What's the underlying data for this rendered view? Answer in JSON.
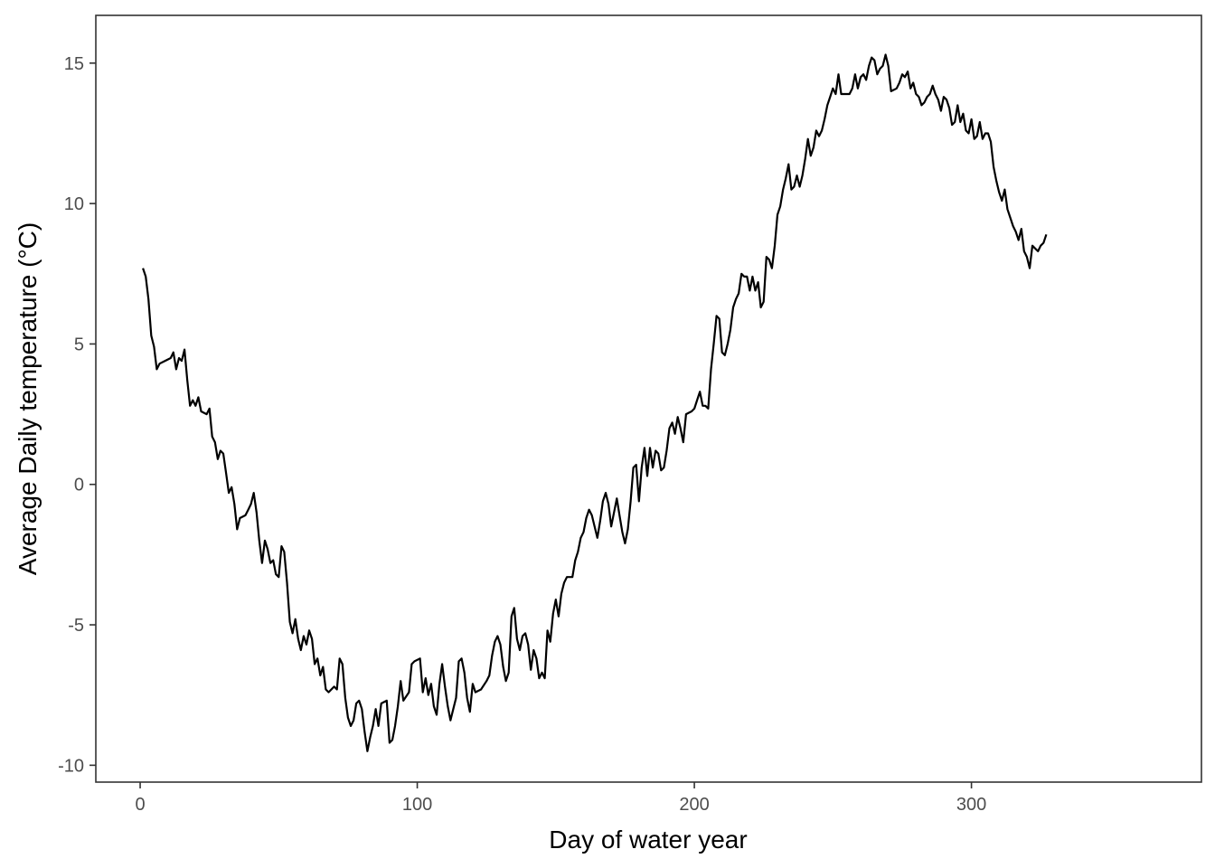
{
  "chart_data": {
    "type": "line",
    "title": "",
    "xlabel": "Day of water year",
    "ylabel": "Average Daily temperature (°C)",
    "xlim": [
      -16,
      383
    ],
    "ylim": [
      -10.6,
      16.7
    ],
    "x_ticks": [
      0,
      100,
      200,
      300
    ],
    "y_ticks": [
      -10,
      -5,
      0,
      5,
      10,
      15
    ],
    "grid": false,
    "line_color": "#000000",
    "series": [
      {
        "values": [
          [
            1,
            7.7
          ],
          [
            2,
            7.4
          ],
          [
            3,
            6.6
          ],
          [
            4,
            5.3
          ],
          [
            5,
            4.9
          ],
          [
            6,
            4.1
          ],
          [
            7,
            4.3
          ],
          [
            9,
            4.4
          ],
          [
            11,
            4.5
          ],
          [
            12,
            4.7
          ],
          [
            13,
            4.1
          ],
          [
            14,
            4.5
          ],
          [
            15,
            4.4
          ],
          [
            16,
            4.8
          ],
          [
            17,
            3.7
          ],
          [
            18,
            2.8
          ],
          [
            19,
            3.0
          ],
          [
            20,
            2.8
          ],
          [
            21,
            3.1
          ],
          [
            22,
            2.6
          ],
          [
            24,
            2.5
          ],
          [
            25,
            2.7
          ],
          [
            26,
            1.7
          ],
          [
            27,
            1.5
          ],
          [
            28,
            0.9
          ],
          [
            29,
            1.2
          ],
          [
            30,
            1.1
          ],
          [
            31,
            0.4
          ],
          [
            32,
            -0.3
          ],
          [
            33,
            -0.1
          ],
          [
            34,
            -0.7
          ],
          [
            35,
            -1.6
          ],
          [
            36,
            -1.2
          ],
          [
            38,
            -1.1
          ],
          [
            39,
            -0.9
          ],
          [
            40,
            -0.7
          ],
          [
            41,
            -0.3
          ],
          [
            42,
            -1.0
          ],
          [
            43,
            -2.0
          ],
          [
            44,
            -2.8
          ],
          [
            45,
            -2.0
          ],
          [
            46,
            -2.3
          ],
          [
            47,
            -2.8
          ],
          [
            48,
            -2.7
          ],
          [
            49,
            -3.2
          ],
          [
            50,
            -3.3
          ],
          [
            51,
            -2.2
          ],
          [
            52,
            -2.4
          ],
          [
            53,
            -3.5
          ],
          [
            54,
            -4.9
          ],
          [
            55,
            -5.3
          ],
          [
            56,
            -4.8
          ],
          [
            57,
            -5.5
          ],
          [
            58,
            -5.9
          ],
          [
            59,
            -5.4
          ],
          [
            60,
            -5.7
          ],
          [
            61,
            -5.2
          ],
          [
            62,
            -5.5
          ],
          [
            63,
            -6.4
          ],
          [
            64,
            -6.2
          ],
          [
            65,
            -6.8
          ],
          [
            66,
            -6.5
          ],
          [
            67,
            -7.3
          ],
          [
            68,
            -7.4
          ],
          [
            70,
            -7.2
          ],
          [
            71,
            -7.3
          ],
          [
            72,
            -6.2
          ],
          [
            73,
            -6.4
          ],
          [
            74,
            -7.6
          ],
          [
            75,
            -8.3
          ],
          [
            76,
            -8.6
          ],
          [
            77,
            -8.4
          ],
          [
            78,
            -7.8
          ],
          [
            79,
            -7.7
          ],
          [
            80,
            -8.0
          ],
          [
            81,
            -8.8
          ],
          [
            82,
            -9.5
          ],
          [
            83,
            -9.0
          ],
          [
            84,
            -8.6
          ],
          [
            85,
            -8.0
          ],
          [
            86,
            -8.6
          ],
          [
            87,
            -7.8
          ],
          [
            89,
            -7.7
          ],
          [
            90,
            -9.2
          ],
          [
            91,
            -9.1
          ],
          [
            92,
            -8.6
          ],
          [
            93,
            -7.9
          ],
          [
            94,
            -7.0
          ],
          [
            95,
            -7.7
          ],
          [
            97,
            -7.4
          ],
          [
            98,
            -6.4
          ],
          [
            99,
            -6.3
          ],
          [
            101,
            -6.2
          ],
          [
            102,
            -7.4
          ],
          [
            103,
            -6.9
          ],
          [
            104,
            -7.5
          ],
          [
            105,
            -7.1
          ],
          [
            106,
            -7.9
          ],
          [
            107,
            -8.2
          ],
          [
            108,
            -7.1
          ],
          [
            109,
            -6.4
          ],
          [
            110,
            -7.2
          ],
          [
            111,
            -7.9
          ],
          [
            112,
            -8.4
          ],
          [
            113,
            -8.0
          ],
          [
            114,
            -7.6
          ],
          [
            115,
            -6.3
          ],
          [
            116,
            -6.2
          ],
          [
            117,
            -6.7
          ],
          [
            118,
            -7.6
          ],
          [
            119,
            -8.1
          ],
          [
            120,
            -7.1
          ],
          [
            121,
            -7.4
          ],
          [
            123,
            -7.3
          ],
          [
            125,
            -7.0
          ],
          [
            126,
            -6.8
          ],
          [
            127,
            -6.1
          ],
          [
            128,
            -5.6
          ],
          [
            129,
            -5.4
          ],
          [
            130,
            -5.7
          ],
          [
            131,
            -6.5
          ],
          [
            132,
            -7.0
          ],
          [
            133,
            -6.7
          ],
          [
            134,
            -4.7
          ],
          [
            135,
            -4.4
          ],
          [
            136,
            -5.5
          ],
          [
            137,
            -5.9
          ],
          [
            138,
            -5.4
          ],
          [
            139,
            -5.3
          ],
          [
            140,
            -5.7
          ],
          [
            141,
            -6.6
          ],
          [
            142,
            -5.9
          ],
          [
            143,
            -6.2
          ],
          [
            144,
            -6.9
          ],
          [
            145,
            -6.7
          ],
          [
            146,
            -6.9
          ],
          [
            147,
            -5.2
          ],
          [
            148,
            -5.6
          ],
          [
            149,
            -4.6
          ],
          [
            150,
            -4.1
          ],
          [
            151,
            -4.7
          ],
          [
            152,
            -3.9
          ],
          [
            153,
            -3.5
          ],
          [
            154,
            -3.3
          ],
          [
            156,
            -3.3
          ],
          [
            157,
            -2.7
          ],
          [
            158,
            -2.4
          ],
          [
            159,
            -1.9
          ],
          [
            160,
            -1.7
          ],
          [
            161,
            -1.2
          ],
          [
            162,
            -0.9
          ],
          [
            163,
            -1.1
          ],
          [
            164,
            -1.5
          ],
          [
            165,
            -1.9
          ],
          [
            166,
            -1.3
          ],
          [
            167,
            -0.6
          ],
          [
            168,
            -0.3
          ],
          [
            169,
            -0.7
          ],
          [
            170,
            -1.5
          ],
          [
            171,
            -1.0
          ],
          [
            172,
            -0.5
          ],
          [
            173,
            -1.1
          ],
          [
            174,
            -1.7
          ],
          [
            175,
            -2.1
          ],
          [
            176,
            -1.6
          ],
          [
            177,
            -0.6
          ],
          [
            178,
            0.6
          ],
          [
            179,
            0.7
          ],
          [
            180,
            -0.6
          ],
          [
            181,
            0.6
          ],
          [
            182,
            1.3
          ],
          [
            183,
            0.3
          ],
          [
            184,
            1.3
          ],
          [
            185,
            0.6
          ],
          [
            186,
            1.2
          ],
          [
            187,
            1.1
          ],
          [
            188,
            0.5
          ],
          [
            189,
            0.6
          ],
          [
            190,
            1.2
          ],
          [
            191,
            2.0
          ],
          [
            192,
            2.2
          ],
          [
            193,
            1.8
          ],
          [
            194,
            2.4
          ],
          [
            195,
            2.0
          ],
          [
            196,
            1.5
          ],
          [
            197,
            2.5
          ],
          [
            199,
            2.6
          ],
          [
            200,
            2.7
          ],
          [
            201,
            3.0
          ],
          [
            202,
            3.3
          ],
          [
            203,
            2.8
          ],
          [
            204,
            2.8
          ],
          [
            205,
            2.7
          ],
          [
            206,
            4.1
          ],
          [
            207,
            5.0
          ],
          [
            208,
            6.0
          ],
          [
            209,
            5.9
          ],
          [
            210,
            4.7
          ],
          [
            211,
            4.6
          ],
          [
            212,
            5.0
          ],
          [
            213,
            5.5
          ],
          [
            214,
            6.3
          ],
          [
            215,
            6.6
          ],
          [
            216,
            6.8
          ],
          [
            217,
            7.5
          ],
          [
            218,
            7.4
          ],
          [
            219,
            7.4
          ],
          [
            220,
            6.9
          ],
          [
            221,
            7.4
          ],
          [
            222,
            6.9
          ],
          [
            223,
            7.2
          ],
          [
            224,
            6.3
          ],
          [
            225,
            6.5
          ],
          [
            226,
            8.1
          ],
          [
            227,
            8.0
          ],
          [
            228,
            7.7
          ],
          [
            229,
            8.5
          ],
          [
            230,
            9.6
          ],
          [
            231,
            9.9
          ],
          [
            232,
            10.5
          ],
          [
            233,
            10.9
          ],
          [
            234,
            11.4
          ],
          [
            235,
            10.5
          ],
          [
            236,
            10.6
          ],
          [
            237,
            11.0
          ],
          [
            238,
            10.6
          ],
          [
            239,
            11.0
          ],
          [
            240,
            11.6
          ],
          [
            241,
            12.3
          ],
          [
            242,
            11.7
          ],
          [
            243,
            12.0
          ],
          [
            244,
            12.6
          ],
          [
            245,
            12.4
          ],
          [
            246,
            12.6
          ],
          [
            247,
            13.0
          ],
          [
            248,
            13.5
          ],
          [
            249,
            13.8
          ],
          [
            250,
            14.1
          ],
          [
            251,
            13.9
          ],
          [
            252,
            14.6
          ],
          [
            253,
            13.9
          ],
          [
            256,
            13.9
          ],
          [
            257,
            14.1
          ],
          [
            258,
            14.6
          ],
          [
            259,
            14.1
          ],
          [
            260,
            14.5
          ],
          [
            261,
            14.6
          ],
          [
            262,
            14.4
          ],
          [
            263,
            14.9
          ],
          [
            264,
            15.2
          ],
          [
            265,
            15.1
          ],
          [
            266,
            14.6
          ],
          [
            267,
            14.8
          ],
          [
            268,
            14.9
          ],
          [
            269,
            15.3
          ],
          [
            270,
            14.9
          ],
          [
            271,
            14.0
          ],
          [
            273,
            14.1
          ],
          [
            274,
            14.3
          ],
          [
            275,
            14.6
          ],
          [
            276,
            14.5
          ],
          [
            277,
            14.7
          ],
          [
            278,
            14.1
          ],
          [
            279,
            14.3
          ],
          [
            280,
            13.9
          ],
          [
            281,
            13.8
          ],
          [
            282,
            13.5
          ],
          [
            283,
            13.6
          ],
          [
            284,
            13.8
          ],
          [
            285,
            13.9
          ],
          [
            286,
            14.2
          ],
          [
            287,
            13.9
          ],
          [
            288,
            13.7
          ],
          [
            289,
            13.3
          ],
          [
            290,
            13.8
          ],
          [
            291,
            13.7
          ],
          [
            292,
            13.4
          ],
          [
            293,
            12.8
          ],
          [
            294,
            12.9
          ],
          [
            295,
            13.5
          ],
          [
            296,
            12.9
          ],
          [
            297,
            13.2
          ],
          [
            298,
            12.6
          ],
          [
            299,
            12.5
          ],
          [
            300,
            13.0
          ],
          [
            301,
            12.3
          ],
          [
            302,
            12.4
          ],
          [
            303,
            12.9
          ],
          [
            304,
            12.3
          ],
          [
            305,
            12.5
          ],
          [
            306,
            12.5
          ],
          [
            307,
            12.2
          ],
          [
            308,
            11.3
          ],
          [
            309,
            10.8
          ],
          [
            310,
            10.4
          ],
          [
            311,
            10.1
          ],
          [
            312,
            10.5
          ],
          [
            313,
            9.8
          ],
          [
            314,
            9.5
          ],
          [
            315,
            9.2
          ],
          [
            316,
            9.0
          ],
          [
            317,
            8.7
          ],
          [
            318,
            9.1
          ],
          [
            319,
            8.3
          ],
          [
            320,
            8.1
          ],
          [
            321,
            7.7
          ],
          [
            322,
            8.5
          ],
          [
            323,
            8.4
          ],
          [
            324,
            8.3
          ],
          [
            325,
            8.5
          ],
          [
            326,
            8.6
          ],
          [
            327,
            8.9
          ]
        ]
      }
    ]
  }
}
